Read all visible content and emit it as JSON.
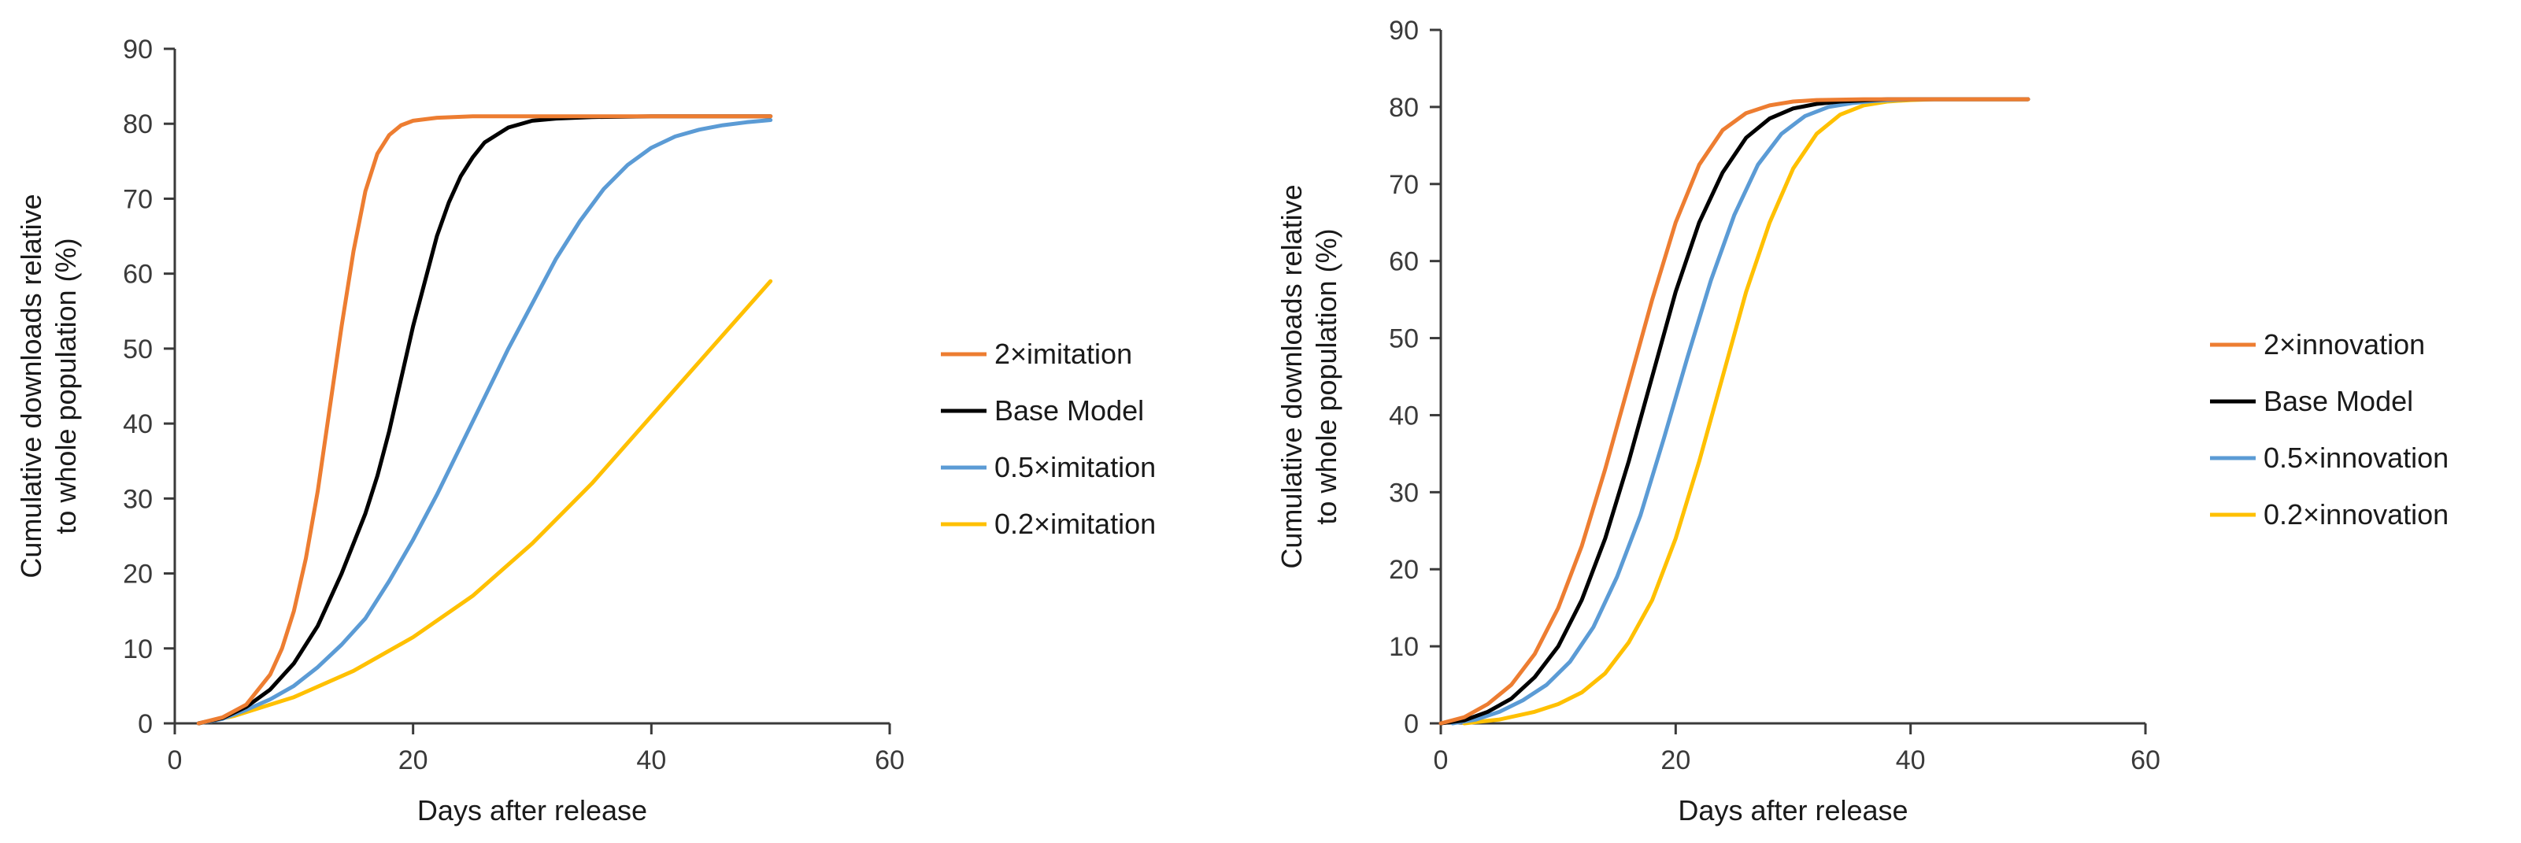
{
  "chart_data": [
    {
      "type": "line",
      "title": "",
      "xlabel": "Days after release",
      "ylabel": [
        "Cumulative downloads relative",
        "to whole population (%)"
      ],
      "xlim": [
        0,
        60
      ],
      "ylim": [
        0,
        90
      ],
      "xticks": [
        0,
        20,
        40,
        60
      ],
      "yticks": [
        0,
        10,
        20,
        30,
        40,
        50,
        60,
        70,
        80,
        90
      ],
      "grid": false,
      "legend_position": "right",
      "series": [
        {
          "name": "2×imitation",
          "color": "#ED7D31",
          "x": [
            2,
            4,
            6,
            8,
            9,
            10,
            11,
            12,
            13,
            14,
            15,
            16,
            17,
            18,
            19,
            20,
            22,
            25,
            30,
            40,
            50
          ],
          "y": [
            0,
            0.8,
            2.5,
            6.5,
            10,
            15,
            22,
            31,
            42,
            53,
            63,
            71,
            76,
            78.5,
            79.8,
            80.4,
            80.8,
            81,
            81,
            81,
            81
          ]
        },
        {
          "name": "Base Model",
          "color": "#000000",
          "x": [
            2,
            4,
            6,
            8,
            10,
            12,
            14,
            16,
            17,
            18,
            19,
            20,
            21,
            22,
            23,
            24,
            25,
            26,
            28,
            30,
            32,
            35,
            40,
            50
          ],
          "y": [
            0,
            0.7,
            2.2,
            4.5,
            8,
            13,
            20,
            28,
            33,
            39,
            46,
            53,
            59,
            65,
            69.5,
            73,
            75.5,
            77.5,
            79.5,
            80.4,
            80.7,
            80.9,
            81,
            81
          ]
        },
        {
          "name": "0.5×imitation",
          "color": "#5B9BD5",
          "x": [
            2,
            4,
            6,
            8,
            10,
            12,
            14,
            16,
            18,
            20,
            22,
            24,
            26,
            28,
            30,
            32,
            34,
            36,
            38,
            40,
            42,
            44,
            46,
            48,
            50
          ],
          "y": [
            0,
            0.6,
            1.8,
            3.2,
            5,
            7.5,
            10.5,
            14,
            19,
            24.5,
            30.5,
            37,
            43.5,
            50,
            56,
            62,
            67,
            71.3,
            74.5,
            76.8,
            78.3,
            79.2,
            79.8,
            80.2,
            80.5
          ]
        },
        {
          "name": "0.2×imitation",
          "color": "#FFC000",
          "x": [
            2,
            5,
            10,
            15,
            20,
            25,
            30,
            35,
            40,
            45,
            50
          ],
          "y": [
            0,
            1,
            3.5,
            7,
            11.5,
            17,
            24,
            32,
            41,
            50,
            59
          ]
        }
      ]
    },
    {
      "type": "line",
      "title": "",
      "xlabel": "Days after release",
      "ylabel": [
        "Cumulative downloads relative",
        "to whole population (%)"
      ],
      "xlim": [
        0,
        60
      ],
      "ylim": [
        0,
        90
      ],
      "xticks": [
        0,
        20,
        40,
        60
      ],
      "yticks": [
        0,
        10,
        20,
        30,
        40,
        50,
        60,
        70,
        80,
        90
      ],
      "grid": false,
      "legend_position": "right",
      "series": [
        {
          "name": "2×innovation",
          "color": "#ED7D31",
          "x": [
            0,
            2,
            4,
            6,
            8,
            10,
            12,
            14,
            16,
            18,
            20,
            22,
            24,
            26,
            28,
            30,
            32,
            36,
            40,
            50
          ],
          "y": [
            0,
            0.8,
            2.5,
            5,
            9,
            15,
            23,
            33,
            44,
            55,
            65,
            72.5,
            77,
            79.2,
            80.2,
            80.7,
            80.9,
            81,
            81,
            81
          ]
        },
        {
          "name": "Base Model",
          "color": "#000000",
          "x": [
            0,
            2,
            4,
            6,
            8,
            10,
            12,
            14,
            16,
            18,
            20,
            22,
            24,
            26,
            28,
            30,
            32,
            34,
            38,
            42,
            50
          ],
          "y": [
            0,
            0.4,
            1.5,
            3.2,
            6,
            10,
            16,
            24,
            34,
            45,
            56,
            65,
            71.5,
            76,
            78.5,
            79.8,
            80.4,
            80.7,
            81,
            81,
            81
          ]
        },
        {
          "name": "0.5×innovation",
          "color": "#5B9BD5",
          "x": [
            1,
            3,
            5,
            7,
            9,
            11,
            13,
            15,
            17,
            19,
            21,
            23,
            25,
            27,
            29,
            31,
            33,
            35,
            37,
            40,
            44,
            50
          ],
          "y": [
            0,
            0.5,
            1.5,
            3,
            5,
            8,
            12.5,
            19,
            27,
            37,
            47.5,
            57.5,
            66,
            72.5,
            76.5,
            78.8,
            80,
            80.5,
            80.8,
            81,
            81,
            81
          ]
        },
        {
          "name": "0.2×innovation",
          "color": "#FFC000",
          "x": [
            2,
            5,
            8,
            10,
            12,
            14,
            16,
            18,
            20,
            22,
            24,
            26,
            28,
            30,
            32,
            34,
            36,
            38,
            40,
            42,
            45,
            50
          ],
          "y": [
            0,
            0.5,
            1.5,
            2.5,
            4,
            6.5,
            10.5,
            16,
            24,
            34,
            45,
            56,
            65,
            72,
            76.5,
            79,
            80.2,
            80.7,
            80.9,
            81,
            81,
            81
          ]
        }
      ]
    }
  ]
}
